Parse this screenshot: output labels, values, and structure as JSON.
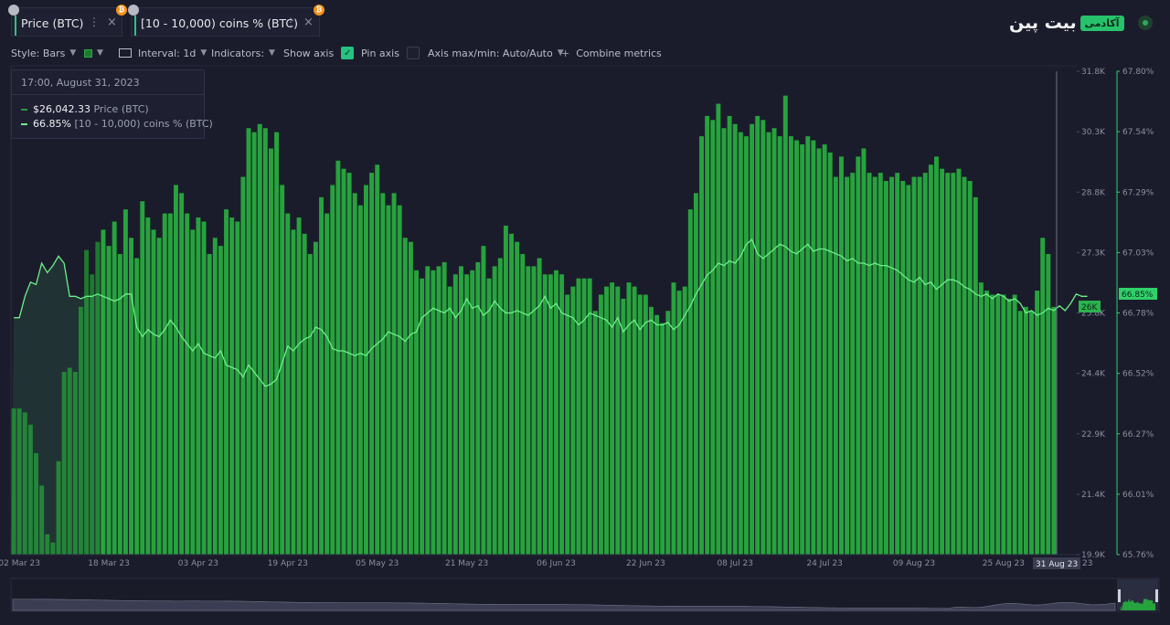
{
  "brand": {
    "logo_text": "بیت پین",
    "badge": "آکادمی"
  },
  "tabs": [
    {
      "label": "Price (BTC)",
      "dots": "⋮",
      "close": "×",
      "btc": "₿"
    },
    {
      "label": "[10 - 10,000) coins % (BTC)",
      "dots": "⋮",
      "close": "×",
      "btc": "₿"
    }
  ],
  "toolbar": {
    "style": "Style: Bars",
    "interval": "Interval: 1d",
    "indicators": "Indicators:",
    "show_axis": "Show axis",
    "pin_axis": "Pin axis",
    "axis_maxmin": "Axis max/min: Auto/Auto",
    "combine": "Combine metrics",
    "combine_plus": "+"
  },
  "tooltip": {
    "date": "17:00, August 31, 2023",
    "rows": [
      {
        "value": "$26,042.33",
        "metric": "Price (BTC)"
      },
      {
        "value": "66.85%",
        "metric": "[10 - 10,000) coins % (BTC)"
      }
    ]
  },
  "colors": {
    "bar": "#27a33d",
    "bar_dark": "#1d7a2e",
    "line": "#6cf089",
    "background": "#1b1c2b",
    "accent": "#2ec27e"
  },
  "chart_data": {
    "type": "bar",
    "x_start": "2023-03-01",
    "x_end": "2023-08-31",
    "x_ticks": [
      "02 Mar 23",
      "18 Mar 23",
      "03 Apr 23",
      "19 Apr 23",
      "05 May 23",
      "21 May 23",
      "06 Jun 23",
      "22 Jun 23",
      "08 Jul 23",
      "24 Jul 23",
      "09 Aug 23",
      "25 Aug 23"
    ],
    "x_highlight": "31 Aug 23",
    "x_trailing": "23",
    "y_left_ticks": [
      "31.8K",
      "30.3K",
      "28.8K",
      "27.3K",
      "25.8K",
      "24.4K",
      "22.9K",
      "21.4K",
      "19.9K"
    ],
    "y_left_range": [
      19900,
      31800
    ],
    "y_left_highlight": "26K",
    "y_right_ticks": [
      "67.80%",
      "67.54%",
      "67.29%",
      "67.03%",
      "66.78%",
      "66.52%",
      "66.27%",
      "66.01%",
      "65.76%"
    ],
    "y_right_range": [
      65.76,
      67.8
    ],
    "y_right_highlight": "66.85%",
    "series": [
      {
        "name": "Price (BTC)",
        "type": "bar",
        "values": [
          23500,
          23500,
          23400,
          23100,
          22400,
          21600,
          20400,
          20200,
          22200,
          24400,
          24500,
          24400,
          26000,
          27400,
          26800,
          27600,
          27900,
          27500,
          28100,
          27300,
          28400,
          27700,
          27200,
          28600,
          28200,
          27900,
          27700,
          28300,
          28300,
          29000,
          28800,
          28300,
          27900,
          28200,
          28100,
          27300,
          27700,
          27500,
          28400,
          28200,
          28100,
          29200,
          30400,
          30300,
          30500,
          30400,
          29900,
          30300,
          29000,
          28300,
          27900,
          28200,
          27800,
          27300,
          27600,
          28700,
          28300,
          29000,
          29600,
          29400,
          29300,
          28800,
          28500,
          29000,
          29300,
          29500,
          28800,
          28500,
          28800,
          28500,
          27700,
          27600,
          26900,
          26700,
          27000,
          26900,
          27000,
          27100,
          26500,
          26800,
          27000,
          26800,
          26900,
          27100,
          27500,
          26700,
          27000,
          27200,
          28000,
          27800,
          27600,
          27300,
          27000,
          27000,
          27200,
          26800,
          26800,
          26900,
          26800,
          26300,
          26500,
          26700,
          26700,
          26700,
          25900,
          26300,
          26500,
          26600,
          26500,
          26200,
          26600,
          26500,
          26300,
          26300,
          26000,
          25800,
          25600,
          25900,
          26600,
          26400,
          26500,
          28400,
          28800,
          30200,
          30700,
          30600,
          31000,
          30400,
          30700,
          30500,
          30300,
          30200,
          30500,
          30700,
          30600,
          30300,
          30400,
          30200,
          31200,
          30200,
          30100,
          30000,
          30200,
          30100,
          29900,
          30000,
          29800,
          29200,
          29700,
          29200,
          29300,
          29700,
          29900,
          29300,
          29200,
          29300,
          29100,
          29200,
          29300,
          29100,
          29000,
          29200,
          29200,
          29300,
          29500,
          29700,
          29400,
          29300,
          29300,
          29400,
          29200,
          29100,
          28700,
          26600,
          26400,
          26300,
          26300,
          26300,
          26200,
          26300,
          25900,
          26000,
          25900,
          26400,
          27700,
          27300,
          26000
        ]
      },
      {
        "name": "[10 - 10,000) coins % (BTC)",
        "type": "line",
        "values": [
          66.76,
          66.76,
          66.85,
          66.91,
          66.9,
          66.99,
          66.95,
          66.98,
          67.02,
          66.99,
          66.85,
          66.85,
          66.84,
          66.85,
          66.85,
          66.86,
          66.85,
          66.84,
          66.83,
          66.84,
          66.86,
          66.86,
          66.72,
          66.68,
          66.71,
          66.69,
          66.68,
          66.71,
          66.75,
          66.72,
          66.68,
          66.65,
          66.62,
          66.65,
          66.61,
          66.6,
          66.59,
          66.62,
          66.56,
          66.55,
          66.54,
          66.51,
          66.56,
          66.53,
          66.5,
          66.47,
          66.48,
          66.5,
          66.57,
          66.64,
          66.62,
          66.65,
          66.67,
          66.68,
          66.72,
          66.71,
          66.68,
          66.63,
          66.62,
          66.62,
          66.61,
          66.6,
          66.61,
          66.6,
          66.63,
          66.65,
          66.67,
          66.7,
          66.69,
          66.68,
          66.66,
          66.69,
          66.7,
          66.76,
          66.78,
          66.8,
          66.79,
          66.78,
          66.8,
          66.76,
          66.79,
          66.84,
          66.8,
          66.81,
          66.77,
          66.79,
          66.83,
          66.8,
          66.78,
          66.78,
          66.79,
          66.78,
          66.77,
          66.79,
          66.81,
          66.85,
          66.8,
          66.82,
          66.78,
          66.77,
          66.76,
          66.73,
          66.75,
          66.78,
          66.77,
          66.76,
          66.75,
          66.72,
          66.76,
          66.7,
          66.73,
          66.75,
          66.71,
          66.74,
          66.75,
          66.73,
          66.73,
          66.74,
          66.71,
          66.73,
          66.77,
          66.81,
          66.86,
          66.9,
          66.94,
          66.96,
          66.99,
          66.98,
          67.0,
          66.99,
          67.02,
          67.07,
          67.09,
          67.03,
          67.01,
          67.03,
          67.05,
          67.07,
          67.06,
          67.04,
          67.03,
          67.05,
          67.07,
          67.04,
          67.05,
          67.05,
          67.04,
          67.03,
          67.02,
          67.0,
          67.01,
          66.99,
          66.99,
          66.98,
          66.99,
          66.98,
          66.98,
          66.97,
          66.96,
          66.94,
          66.92,
          66.91,
          66.93,
          66.9,
          66.91,
          66.88,
          66.9,
          66.92,
          66.92,
          66.91,
          66.89,
          66.88,
          66.86,
          66.85,
          66.86,
          66.84,
          66.86,
          66.85,
          66.83,
          66.84,
          66.82,
          66.78,
          66.79,
          66.77,
          66.78,
          66.8,
          66.79,
          66.81,
          66.79,
          66.82,
          66.86,
          66.85,
          66.85
        ]
      }
    ],
    "grid": false,
    "legend": "tooltip top-left"
  }
}
